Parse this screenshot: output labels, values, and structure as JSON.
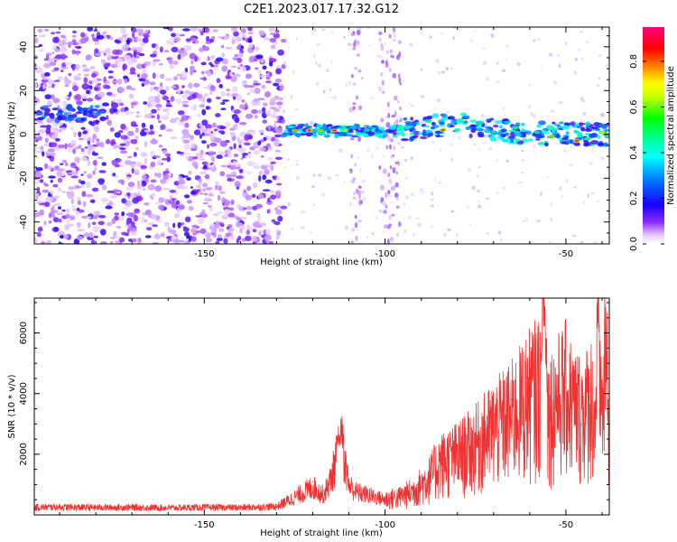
{
  "title": "C2E1.2023.017.17.32.G12",
  "chart_data": [
    {
      "type": "heatmap",
      "name": "spectrogram",
      "xlabel": "Height of straight line (km)",
      "ylabel": "Frequency (Hz)",
      "xlim": [
        -197,
        -38
      ],
      "ylim": [
        -50,
        49
      ],
      "xticks": [
        -150,
        -100,
        -50
      ],
      "yticks": [
        -40,
        -20,
        0,
        20,
        40
      ],
      "colorbar": {
        "label": "Normalized spectral amplitude",
        "range": [
          0,
          0.95
        ],
        "ticks": [
          0.0,
          0.2,
          0.4,
          0.6,
          0.8
        ]
      },
      "features": [
        {
          "label": "noise band",
          "x_range": [
            -197,
            -128
          ],
          "freq_range": [
            -50,
            49
          ]
        },
        {
          "label": "signal trace",
          "x_start": -128,
          "x_end": -38,
          "freq_start": 2,
          "freq_end": 0,
          "max_amplitude": 0.95
        }
      ]
    },
    {
      "type": "line",
      "name": "snr",
      "xlabel": "Height of straight line (km)",
      "ylabel": "SNR (10 * v/v)",
      "xlim": [
        -197,
        -38
      ],
      "ylim": [
        0,
        7150
      ],
      "xticks": [
        -150,
        -100,
        -50
      ],
      "yticks": [
        2000,
        4000,
        6000
      ],
      "color": "#ee3333",
      "series": [
        {
          "name": "SNR",
          "x": [
            -197,
            -190,
            -180,
            -170,
            -160,
            -150,
            -140,
            -130,
            -125,
            -120,
            -117,
            -115,
            -113,
            -112,
            -111,
            -110,
            -108,
            -105,
            -100,
            -96,
            -92,
            -88,
            -85,
            -80,
            -75,
            -70,
            -65,
            -60,
            -57,
            -56,
            -55,
            -52,
            -50,
            -48,
            -45,
            -43,
            -42,
            -41,
            -40,
            -39,
            -38
          ],
          "values": [
            300,
            310,
            290,
            300,
            280,
            300,
            290,
            330,
            700,
            1100,
            800,
            1400,
            2500,
            2850,
            2000,
            1200,
            900,
            800,
            600,
            700,
            950,
            1400,
            2000,
            2300,
            2700,
            3300,
            3800,
            4600,
            5000,
            7000,
            4000,
            4500,
            4800,
            4200,
            4000,
            4500,
            3500,
            7100,
            3800,
            6100,
            3000
          ]
        }
      ]
    }
  ]
}
